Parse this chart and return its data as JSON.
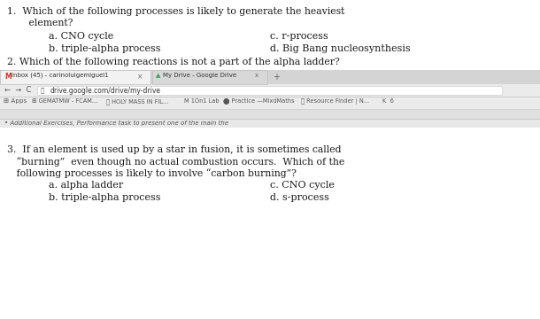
{
  "white_bg": "#ffffff",
  "light_gray": "#e8e8e8",
  "mid_gray": "#d4d4d4",
  "dark_gray": "#cccccc",
  "text_color": "#1a1a1a",
  "q1_line1": "1.  Which of the following processes is likely to generate the heaviest",
  "q1_line2": "   element?",
  "q1_a": "a. CNO cycle",
  "q1_c": "c. r-process",
  "q1_b": "b. triple-alpha process",
  "q1_d": "d. Big Bang nucleosynthesis",
  "q2": "2. Which of the following reactions is not a part of the alpha ladder?",
  "q3_line1": "3.  If an element is used up by a star in fusion, it is sometimes called",
  "q3_line2": "   “burning”  even though no actual combustion occurs.  Which of the",
  "q3_line3": "   following processes is likely to involve “carbon burning”?",
  "q3_a": "a. alpha ladder",
  "q3_c": "c. CNO cycle",
  "q3_b": "b. triple-alpha process",
  "q3_d": "d. s-process",
  "tab1_text": "M  Inbox (45) - carinoluigemiguel1",
  "tab2_text": "My Drive - Google Drive",
  "addr_text": "drive.google.com/drive/my-drive",
  "bm1": "Apps",
  "bm2": "GEMATMW - FCAM...",
  "bm3": "HOLY MASS IN FIL...",
  "bm4": "1On1 Lab",
  "bm5": "Practice —MixdMaths",
  "bm6": "Resource Finder | N...",
  "bm7": "K  6",
  "cut_text": "• Additional Exercises, Performance task to present one of the main the"
}
